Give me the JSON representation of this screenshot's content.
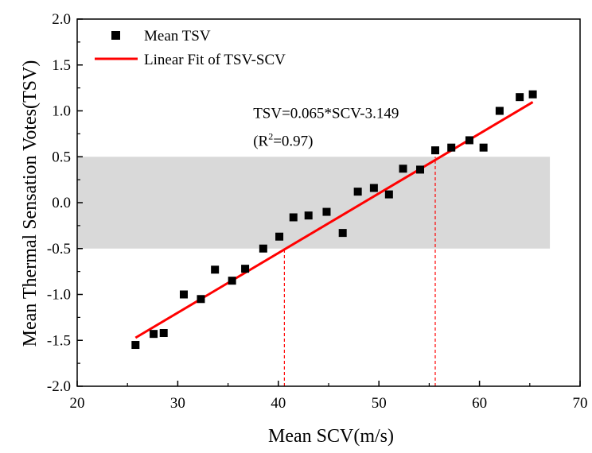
{
  "chart_data": {
    "type": "scatter",
    "xlabel": "Mean SCV(m/s)",
    "ylabel": "Mean Thermal Sensation Votes(TSV)",
    "xlim": [
      20,
      70
    ],
    "ylim": [
      -2.0,
      2.0
    ],
    "xticks": [
      "20",
      "30",
      "40",
      "50",
      "60",
      "70"
    ],
    "yticks": [
      "2.0",
      "1.5",
      "1.0",
      "0.5",
      "0.0",
      "-0.5",
      "-1.0",
      "-1.5",
      "-2.0"
    ],
    "grid": false,
    "legend_position": "top-left",
    "series": [
      {
        "name": "Mean TSV",
        "marker": "square",
        "color": "#000000",
        "points": [
          [
            25.8,
            -1.55
          ],
          [
            27.6,
            -1.43
          ],
          [
            28.6,
            -1.42
          ],
          [
            30.6,
            -1.0
          ],
          [
            32.3,
            -1.05
          ],
          [
            33.7,
            -0.73
          ],
          [
            35.4,
            -0.85
          ],
          [
            36.7,
            -0.72
          ],
          [
            38.5,
            -0.5
          ],
          [
            40.1,
            -0.37
          ],
          [
            41.5,
            -0.16
          ],
          [
            43.0,
            -0.14
          ],
          [
            44.8,
            -0.1
          ],
          [
            46.4,
            -0.33
          ],
          [
            47.9,
            0.12
          ],
          [
            49.5,
            0.16
          ],
          [
            51.0,
            0.09
          ],
          [
            52.4,
            0.37
          ],
          [
            54.1,
            0.36
          ],
          [
            55.6,
            0.57
          ],
          [
            57.2,
            0.6
          ],
          [
            59.0,
            0.68
          ],
          [
            60.4,
            0.6
          ],
          [
            62.0,
            1.0
          ],
          [
            64.0,
            1.15
          ],
          [
            65.3,
            1.18
          ]
        ]
      },
      {
        "name": "Linear Fit of TSV-SCV",
        "type": "line",
        "color": "#ff0000",
        "slope": 0.065,
        "intercept": -3.149,
        "x_range": [
          25.8,
          65.3
        ]
      }
    ],
    "band": {
      "y_from": -0.5,
      "y_to": 0.5,
      "x_to": 67,
      "color": "#d9d9d9"
    },
    "reference_lines": [
      {
        "x": 40.6,
        "y_from": -2.0,
        "y_to": -0.5,
        "color": "#ff0000",
        "style": "dashed"
      },
      {
        "x": 55.6,
        "y_from": -2.0,
        "y_to": 0.5,
        "color": "#ff0000",
        "style": "dashed"
      }
    ],
    "annotations": {
      "equation": "TSV=0.065*SCV-3.149",
      "r2_prefix": "(R",
      "r2_sup": "2",
      "r2_suffix": "=0.97)",
      "eq_x": 37.5,
      "eq_y": 0.92,
      "r2_y": 0.62
    }
  }
}
